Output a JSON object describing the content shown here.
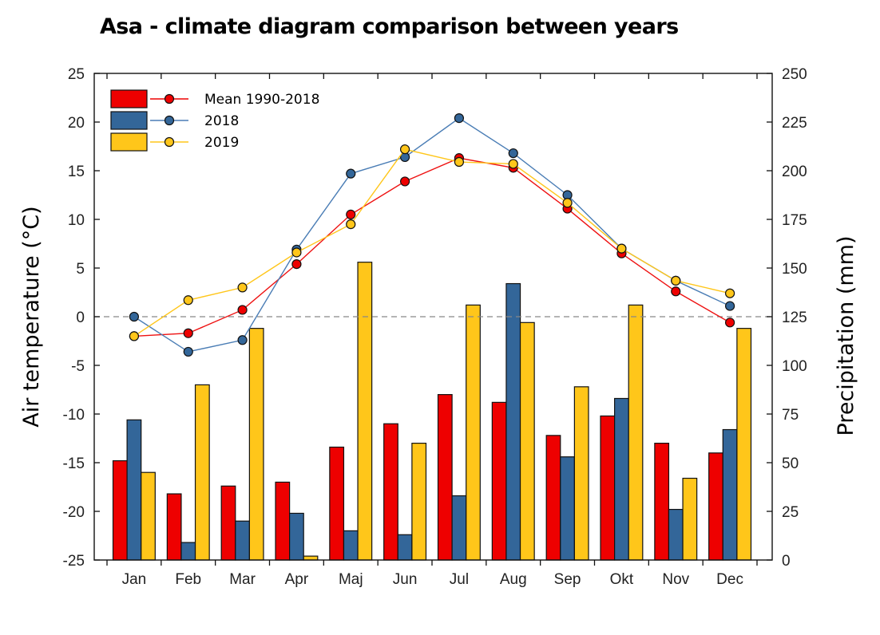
{
  "chart_data": {
    "type": "bar",
    "title": "Asa - climate diagram comparison between years",
    "xlabel": "",
    "ylabel_left": "Air temperature (°C)",
    "ylabel_right": "Precipitation (mm)",
    "ylim_left": [
      -25,
      25
    ],
    "ylim_right": [
      0,
      250
    ],
    "yticks_left": [
      25,
      20,
      15,
      10,
      5,
      0,
      -5,
      -10,
      -15,
      -20,
      -25
    ],
    "yticks_right": [
      250,
      225,
      200,
      175,
      150,
      125,
      100,
      75,
      50,
      25,
      0
    ],
    "reference_line": {
      "axis": "left",
      "value": 0,
      "style": "dashed"
    },
    "categories": [
      "Jan",
      "Feb",
      "Mar",
      "Apr",
      "Maj",
      "Jun",
      "Jul",
      "Aug",
      "Sep",
      "Okt",
      "Nov",
      "Dec"
    ],
    "legend_position": "top-left",
    "series": [
      {
        "name": "Mean 1990-2018",
        "color": "#ee0000",
        "precipitation_mm": [
          51,
          34,
          38,
          40,
          58,
          70,
          85,
          81,
          64,
          74,
          60,
          55
        ],
        "temperature_c": [
          -2.0,
          -1.7,
          0.7,
          5.4,
          10.5,
          13.9,
          16.3,
          15.3,
          11.1,
          6.5,
          2.6,
          -0.6
        ]
      },
      {
        "name": "2018",
        "color": "#336699",
        "precipitation_mm": [
          72,
          9,
          20,
          24,
          15,
          13,
          33,
          142,
          53,
          83,
          26,
          67
        ],
        "temperature_c": [
          0.0,
          -3.6,
          -2.4,
          6.9,
          14.7,
          16.4,
          20.4,
          16.8,
          12.5,
          7.0,
          3.7,
          1.1
        ]
      },
      {
        "name": "2019",
        "color": "#ffc61a",
        "precipitation_mm": [
          45,
          90,
          119,
          2,
          153,
          60,
          131,
          122,
          89,
          131,
          42,
          119
        ],
        "temperature_c": [
          -2.0,
          1.7,
          3.0,
          6.6,
          9.5,
          17.2,
          15.9,
          15.7,
          11.7,
          7.0,
          3.7,
          2.4
        ]
      }
    ]
  }
}
